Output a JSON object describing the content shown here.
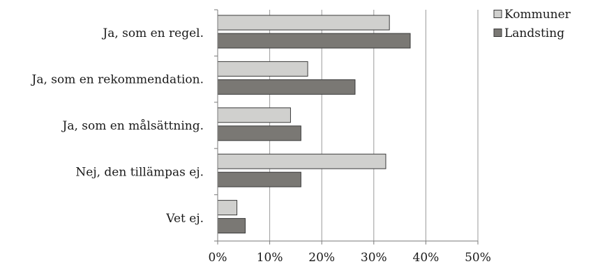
{
  "chart_data": {
    "type": "bar",
    "orientation": "horizontal",
    "categories": [
      "Ja, som en regel.",
      "Ja, som en rekommendation.",
      "Ja, som en målsättning.",
      "Nej, den tillämpas ej.",
      "Vet ej."
    ],
    "series": [
      {
        "name": "Kommuner",
        "color": "#d0d0ce",
        "values": [
          33,
          17.3,
          14,
          32.3,
          3.7
        ]
      },
      {
        "name": "Landsting",
        "color": "#7a7874",
        "values": [
          37,
          26.4,
          16,
          16,
          5.3
        ]
      }
    ],
    "xlim": [
      0,
      50
    ],
    "xticks": [
      0,
      10,
      20,
      30,
      40,
      50
    ],
    "tick_format": "%",
    "grid": "vertical",
    "legend_position": "top-right"
  }
}
